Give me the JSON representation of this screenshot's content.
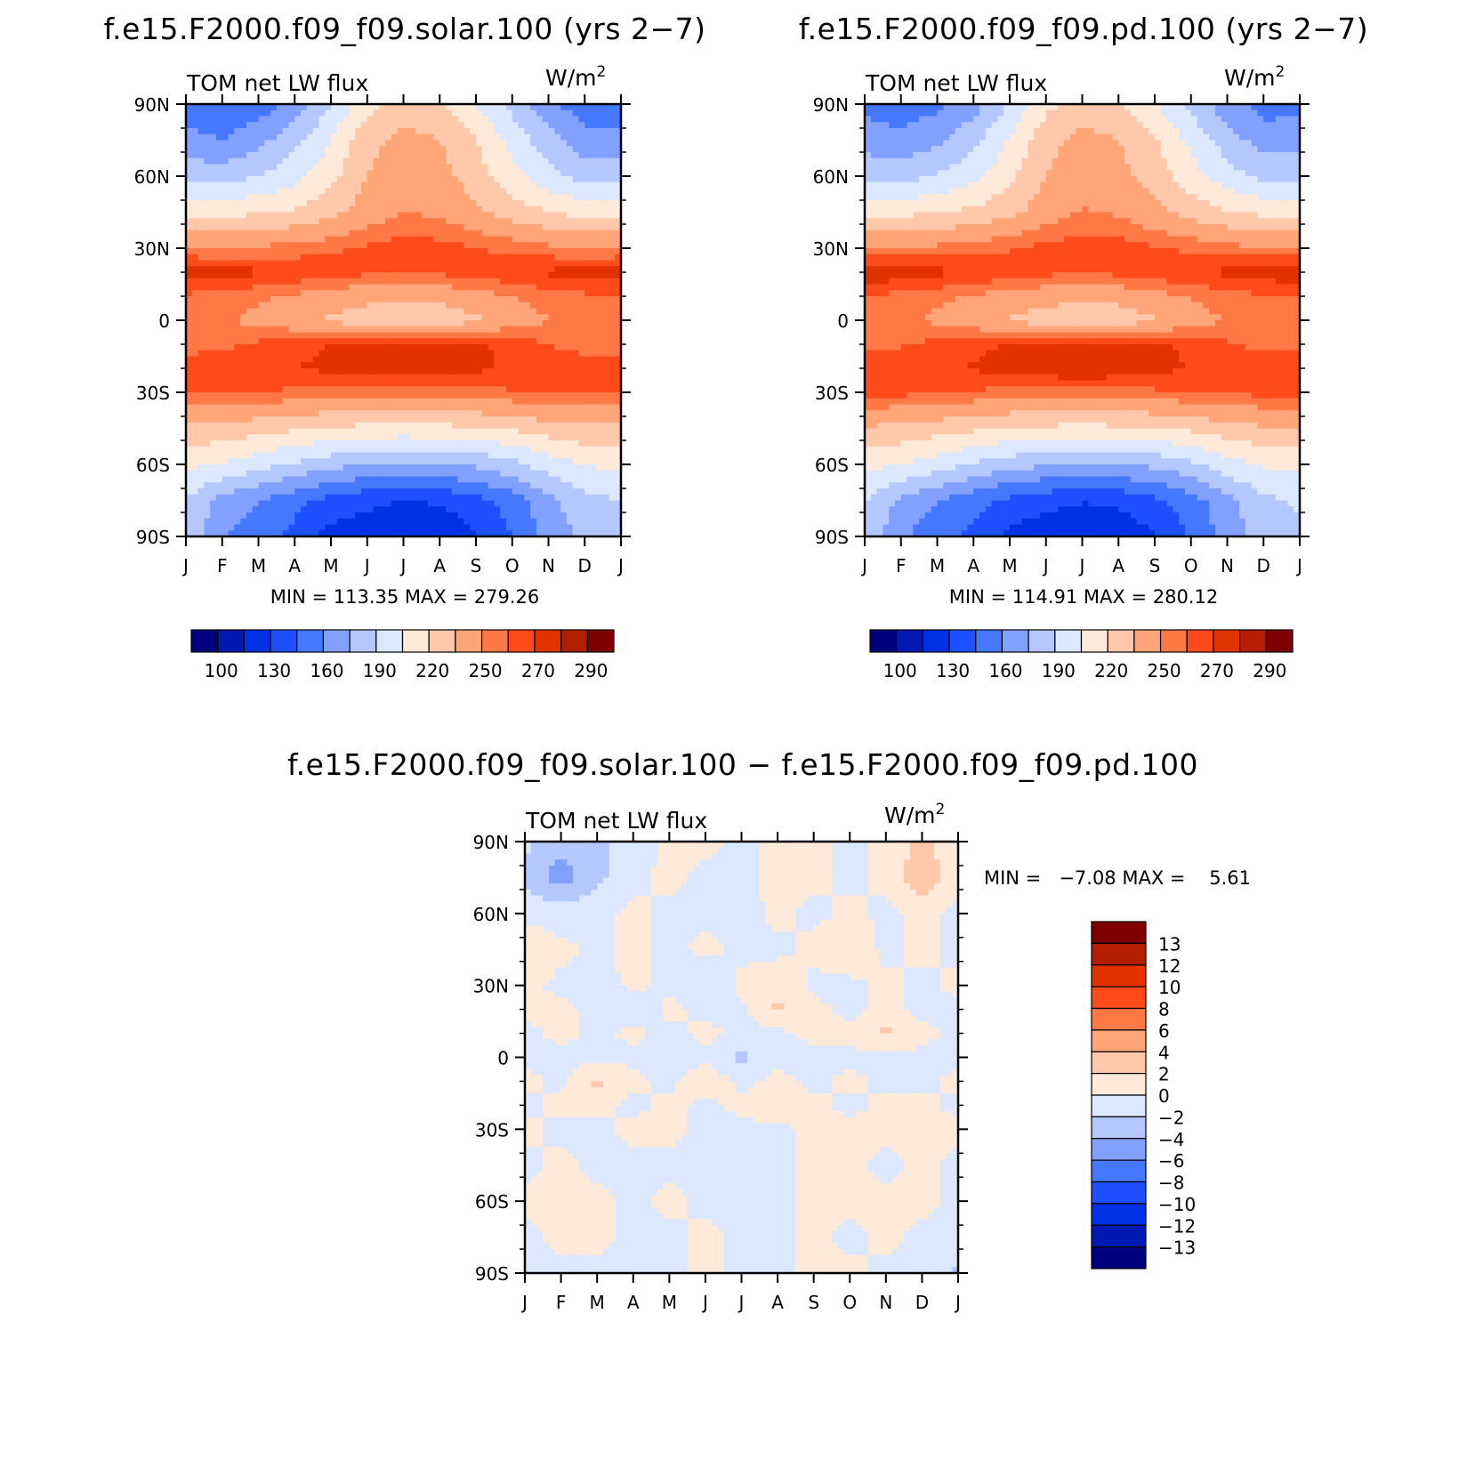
{
  "panels": [
    {
      "id": "solar",
      "title": "f.e15.F2000.f09_f09.solar.100 (yrs 2−7)",
      "variable": "TOM net LW flux",
      "units_base": "W/m",
      "units_exp": "2",
      "stats": "MIN = 113.35 MAX = 279.26"
    },
    {
      "id": "pd",
      "title": "f.e15.F2000.f09_f09.pd.100 (yrs 2−7)",
      "variable": "TOM net LW flux",
      "units_base": "W/m",
      "units_exp": "2",
      "stats": "MIN = 114.91 MAX = 280.12"
    },
    {
      "id": "diff",
      "title": "f.e15.F2000.f09_f09.solar.100 − f.e15.F2000.f09_f09.pd.100",
      "variable": "TOM net LW flux",
      "units_base": "W/m",
      "units_exp": "2",
      "stats": "MIN =   −7.08 MAX =    5.61"
    }
  ],
  "chart_data": [
    {
      "type": "heatmap",
      "title": "f.e15.F2000.f09_f09.solar.100 (yrs 2−7)",
      "variable": "TOM net LW flux",
      "units": "W/m2",
      "x_ticks": [
        "J",
        "F",
        "M",
        "A",
        "M",
        "J",
        "J",
        "A",
        "S",
        "O",
        "N",
        "D",
        "J"
      ],
      "y_ticks": [
        "90N",
        "60N",
        "30N",
        "0",
        "30S",
        "60S",
        "90S"
      ],
      "min": 113.35,
      "max": 279.26,
      "colorbar": {
        "orientation": "horizontal",
        "labels": [
          "100",
          "130",
          "160",
          "190",
          "220",
          "250",
          "270",
          "290"
        ],
        "colors": [
          "#00007f",
          "#0019b2",
          "#0032e5",
          "#1e50ff",
          "#4678ff",
          "#82a0ff",
          "#b4c8ff",
          "#dbe8ff",
          "#ffe9d8",
          "#ffc8aa",
          "#ffa578",
          "#ff7846",
          "#ff4b19",
          "#e13200",
          "#b41e00",
          "#7f0000"
        ]
      },
      "lat": [
        90,
        75,
        60,
        45,
        30,
        20,
        10,
        0,
        -10,
        -20,
        -30,
        -45,
        -60,
        -75,
        -90
      ],
      "rows": [
        [
          150,
          146,
          152,
          165,
          190,
          215,
          225,
          220,
          205,
          185,
          165,
          150,
          150
        ],
        [
          165,
          160,
          170,
          185,
          205,
          230,
          240,
          235,
          220,
          200,
          180,
          165,
          165
        ],
        [
          185,
          182,
          190,
          200,
          215,
          235,
          245,
          240,
          228,
          210,
          195,
          185,
          185
        ],
        [
          215,
          215,
          218,
          222,
          230,
          242,
          250,
          247,
          238,
          228,
          220,
          215,
          215
        ],
        [
          250,
          250,
          252,
          255,
          258,
          262,
          265,
          264,
          260,
          257,
          253,
          250,
          250
        ],
        [
          277,
          276,
          272,
          268,
          265,
          262,
          260,
          262,
          265,
          268,
          272,
          275,
          277
        ],
        [
          258,
          256,
          252,
          248,
          244,
          240,
          238,
          240,
          245,
          250,
          255,
          258,
          258
        ],
        [
          255,
          252,
          246,
          240,
          232,
          226,
          222,
          224,
          232,
          242,
          250,
          255,
          255
        ],
        [
          256,
          258,
          262,
          266,
          270,
          273,
          274,
          274,
          272,
          266,
          260,
          256,
          256
        ],
        [
          265,
          266,
          268,
          270,
          273,
          277,
          279,
          277,
          273,
          268,
          266,
          265,
          265
        ],
        [
          262,
          262,
          260,
          258,
          256,
          255,
          254,
          255,
          257,
          259,
          261,
          262,
          262
        ],
        [
          232,
          230,
          226,
          222,
          218,
          216,
          215,
          216,
          218,
          222,
          228,
          232,
          232
        ],
        [
          208,
          204,
          196,
          188,
          180,
          176,
          174,
          175,
          178,
          186,
          198,
          206,
          208
        ],
        [
          190,
          170,
          160,
          150,
          140,
          134,
          130,
          132,
          140,
          152,
          170,
          185,
          190
        ],
        [
          185,
          160,
          150,
          140,
          125,
          120,
          115,
          118,
          128,
          145,
          165,
          180,
          185
        ]
      ]
    },
    {
      "type": "heatmap",
      "title": "f.e15.F2000.f09_f09.pd.100 (yrs 2−7)",
      "variable": "TOM net LW flux",
      "units": "W/m2",
      "x_ticks": [
        "J",
        "F",
        "M",
        "A",
        "M",
        "J",
        "J",
        "A",
        "S",
        "O",
        "N",
        "D",
        "J"
      ],
      "y_ticks": [
        "90N",
        "60N",
        "30N",
        "0",
        "30S",
        "60S",
        "90S"
      ],
      "min": 114.91,
      "max": 280.12,
      "colorbar": {
        "orientation": "horizontal",
        "labels": [
          "100",
          "130",
          "160",
          "190",
          "220",
          "250",
          "270",
          "290"
        ],
        "colors": [
          "#00007f",
          "#0019b2",
          "#0032e5",
          "#1e50ff",
          "#4678ff",
          "#82a0ff",
          "#b4c8ff",
          "#dbe8ff",
          "#ffe9d8",
          "#ffc8aa",
          "#ffa578",
          "#ff7846",
          "#ff4b19",
          "#e13200",
          "#b41e00",
          "#7f0000"
        ]
      },
      "lat": [
        90,
        75,
        60,
        45,
        30,
        20,
        10,
        0,
        -10,
        -20,
        -30,
        -45,
        -60,
        -75,
        -90
      ],
      "rows": [
        [
          155,
          152,
          156,
          168,
          192,
          216,
          226,
          221,
          206,
          186,
          166,
          154,
          155
        ],
        [
          168,
          164,
          172,
          186,
          206,
          230,
          240,
          235,
          221,
          201,
          182,
          168,
          168
        ],
        [
          186,
          184,
          191,
          201,
          216,
          235,
          245,
          240,
          229,
          211,
          196,
          186,
          186
        ],
        [
          216,
          216,
          219,
          223,
          231,
          243,
          251,
          248,
          239,
          229,
          221,
          216,
          216
        ],
        [
          251,
          251,
          253,
          256,
          259,
          263,
          266,
          265,
          261,
          258,
          254,
          251,
          251
        ],
        [
          278,
          277,
          273,
          269,
          266,
          263,
          261,
          263,
          266,
          269,
          273,
          276,
          278
        ],
        [
          259,
          257,
          253,
          249,
          245,
          241,
          239,
          241,
          246,
          251,
          256,
          259,
          259
        ],
        [
          256,
          253,
          247,
          241,
          233,
          227,
          223,
          225,
          233,
          243,
          251,
          256,
          256
        ],
        [
          257,
          259,
          263,
          267,
          271,
          274,
          275,
          275,
          273,
          267,
          261,
          257,
          257
        ],
        [
          266,
          267,
          269,
          271,
          274,
          278,
          280,
          278,
          274,
          269,
          267,
          266,
          266
        ],
        [
          263,
          263,
          261,
          259,
          257,
          256,
          255,
          256,
          258,
          260,
          262,
          263,
          263
        ],
        [
          233,
          231,
          227,
          223,
          219,
          217,
          216,
          217,
          219,
          223,
          229,
          233,
          233
        ],
        [
          209,
          205,
          197,
          189,
          181,
          177,
          175,
          176,
          179,
          187,
          199,
          207,
          209
        ],
        [
          192,
          172,
          161,
          151,
          141,
          135,
          131,
          133,
          141,
          153,
          171,
          186,
          192
        ],
        [
          188,
          162,
          151,
          141,
          126,
          121,
          116,
          119,
          129,
          146,
          166,
          182,
          188
        ]
      ]
    },
    {
      "type": "heatmap",
      "title": "f.e15.F2000.f09_f09.solar.100 − f.e15.F2000.f09_f09.pd.100",
      "variable": "TOM net LW flux",
      "units": "W/m2",
      "x_ticks": [
        "J",
        "F",
        "M",
        "A",
        "M",
        "J",
        "J",
        "A",
        "S",
        "O",
        "N",
        "D",
        "J"
      ],
      "y_ticks": [
        "90N",
        "60N",
        "30N",
        "0",
        "30S",
        "60S",
        "90S"
      ],
      "min": -7.08,
      "max": 5.61,
      "colorbar": {
        "orientation": "vertical",
        "labels": [
          "13",
          "12",
          "10",
          "8",
          "6",
          "4",
          "2",
          "0",
          "−2",
          "−4",
          "−6",
          "−8",
          "−10",
          "−12",
          "−13"
        ],
        "colors": [
          "#7f0000",
          "#b41e00",
          "#e13200",
          "#ff4b19",
          "#ff7846",
          "#ffa578",
          "#ffc8aa",
          "#ffe9d8",
          "#dbe8ff",
          "#b4c8ff",
          "#82a0ff",
          "#4678ff",
          "#1e50ff",
          "#0032e5",
          "#0019b2",
          "#00007f"
        ]
      },
      "lat": [
        90,
        75,
        60,
        45,
        30,
        20,
        10,
        0,
        -10,
        -20,
        -30,
        -45,
        -60,
        -75,
        -90
      ],
      "rows": [
        [
          -1.5,
          -3.5,
          -2.5,
          -1.0,
          0.5,
          0.5,
          -0.5,
          0.5,
          0.5,
          -0.5,
          0.5,
          2.5,
          0.5
        ],
        [
          -2.5,
          -5.0,
          -2.5,
          -0.5,
          0.5,
          -0.5,
          -0.5,
          0.5,
          0.5,
          -0.5,
          0.5,
          3.5,
          1.0
        ],
        [
          -0.5,
          -1.0,
          -0.5,
          0.5,
          -0.5,
          -0.5,
          -0.8,
          0.5,
          -0.5,
          0.5,
          -0.5,
          0.5,
          -0.5
        ],
        [
          1.5,
          0.5,
          -0.5,
          0.5,
          -0.5,
          0.5,
          -0.5,
          -0.5,
          0.5,
          1.5,
          -0.5,
          0.5,
          -0.5
        ],
        [
          0.5,
          -0.5,
          -0.8,
          0.5,
          -0.5,
          -1.5,
          0.5,
          1.5,
          -0.5,
          -0.5,
          0.5,
          -0.5,
          0.5
        ],
        [
          0.5,
          0.5,
          -0.5,
          -1.5,
          0.5,
          -0.5,
          -0.5,
          2.5,
          0.5,
          -0.5,
          0.5,
          -0.5,
          -0.5
        ],
        [
          -0.5,
          0.5,
          -0.5,
          0.5,
          -0.5,
          0.5,
          -0.5,
          -0.5,
          0.5,
          0.5,
          2.5,
          0.5,
          -0.5
        ],
        [
          -0.5,
          -0.5,
          -0.5,
          -0.5,
          -1.5,
          -0.5,
          -2.5,
          -0.5,
          -0.5,
          -0.5,
          -0.5,
          -0.5,
          -0.5
        ],
        [
          0.5,
          -0.5,
          2.5,
          0.5,
          -0.5,
          1.5,
          -0.5,
          0.5,
          -0.5,
          0.5,
          -0.5,
          -0.5,
          0.5
        ],
        [
          -0.5,
          0.5,
          0.5,
          -0.5,
          0.5,
          -0.5,
          0.5,
          1.5,
          0.5,
          -0.5,
          0.5,
          0.5,
          -0.5
        ],
        [
          0.5,
          -0.5,
          -0.5,
          0.5,
          0.5,
          -0.5,
          -0.5,
          -0.5,
          0.5,
          0.5,
          0.5,
          0.5,
          0.5
        ],
        [
          -0.5,
          0.5,
          -0.5,
          -0.5,
          -0.5,
          -0.5,
          -0.5,
          -0.5,
          0.5,
          0.5,
          -0.5,
          0.5,
          -0.5
        ],
        [
          0.5,
          0.5,
          0.5,
          -0.5,
          0.5,
          -0.5,
          -0.5,
          -0.5,
          0.5,
          0.5,
          0.5,
          0.5,
          -0.5
        ],
        [
          -0.5,
          0.5,
          0.5,
          -0.5,
          -0.5,
          0.5,
          -0.5,
          -0.5,
          0.5,
          -0.5,
          0.5,
          -0.5,
          -0.5
        ],
        [
          -1.5,
          -0.5,
          -0.5,
          -0.5,
          -0.5,
          0.5,
          -0.5,
          -0.5,
          0.5,
          0.5,
          -0.5,
          -0.5,
          -2.5
        ]
      ]
    }
  ]
}
